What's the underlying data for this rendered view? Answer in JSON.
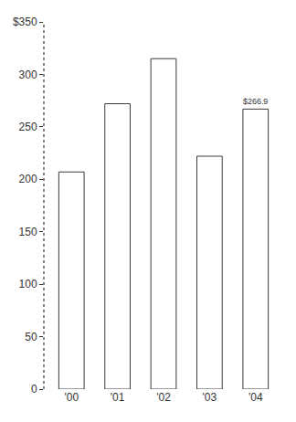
{
  "chart_data": {
    "type": "bar",
    "categories": [
      "'00",
      "'01",
      "'02",
      "'03",
      "'04"
    ],
    "values": [
      207,
      272,
      315,
      222,
      266.9
    ],
    "value_labels": [
      null,
      null,
      null,
      null,
      "$266.9"
    ],
    "data_labels": true,
    "color": "#3a3a3a",
    "ylim": [
      0,
      350
    ],
    "yticks": [
      0,
      50,
      100,
      150,
      200,
      250,
      300,
      {
        "value": 350,
        "label": "$350"
      }
    ],
    "grid": false
  }
}
